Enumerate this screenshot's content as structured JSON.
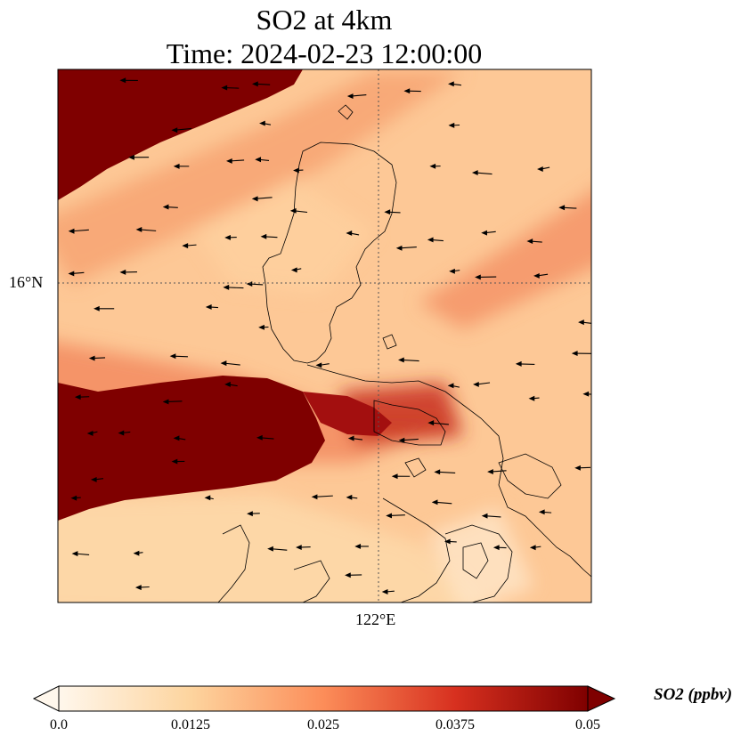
{
  "title": {
    "line1": "SO2 at 4km",
    "line2": "Time: 2024-02-23 12:00:00"
  },
  "axes": {
    "lat_label": "16°N",
    "lon_label": "122°E"
  },
  "colorbar": {
    "title": "SO2 (ppbv)",
    "ticks": [
      "0.0",
      "0.0125",
      "0.025",
      "0.0375",
      "0.05"
    ],
    "colormap": [
      "#fff7ec",
      "#fdd49e",
      "#fc8d59",
      "#d7301f",
      "#7f0000"
    ]
  },
  "map": {
    "field": "SO2 concentration",
    "background_color": "#fdbb84",
    "high_color": "#7f0000",
    "gridline_style": "dotted",
    "wind_arrows": "westward"
  }
}
